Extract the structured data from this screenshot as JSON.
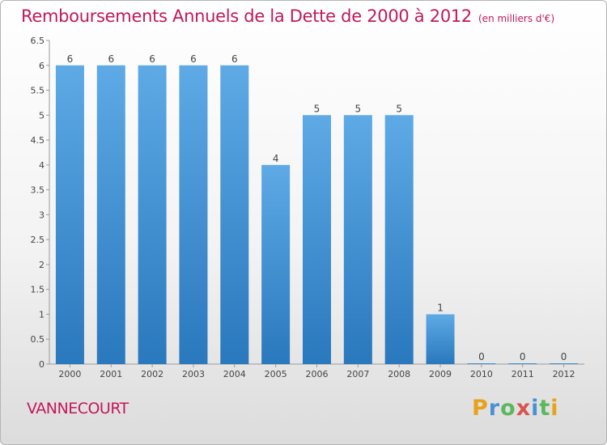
{
  "chart_data": {
    "type": "bar",
    "title": "Remboursements Annuels de la Dette de 2000 à 2012",
    "subtitle": "(en milliers d'€)",
    "categories": [
      "2000",
      "2001",
      "2002",
      "2003",
      "2004",
      "2005",
      "2006",
      "2007",
      "2008",
      "2009",
      "2010",
      "2011",
      "2012"
    ],
    "values": [
      6,
      6,
      6,
      6,
      6,
      4,
      5,
      5,
      5,
      1,
      0,
      0,
      0
    ],
    "data_labels": [
      "6",
      "6",
      "6",
      "6",
      "6",
      "4",
      "5",
      "5",
      "5",
      "1",
      "0",
      "0",
      "0"
    ],
    "ylim": [
      0,
      6.5
    ],
    "yticks": [
      "0",
      "0.5",
      "1",
      "1.5",
      "2",
      "2.5",
      "3",
      "3.5",
      "4",
      "4.5",
      "5",
      "5.5",
      "6",
      "6.5"
    ],
    "grid": false,
    "bar_color": "#3d8fd1"
  },
  "city": "VANNECOURT",
  "logo": {
    "letters": [
      "P",
      "r",
      "o",
      "x",
      "i",
      "t",
      "i"
    ],
    "colors": [
      "#e8a21a",
      "#4a90d9",
      "#5cb85c",
      "#d9534f",
      "#4a90d9",
      "#5cb85c",
      "#e8a21a"
    ]
  }
}
